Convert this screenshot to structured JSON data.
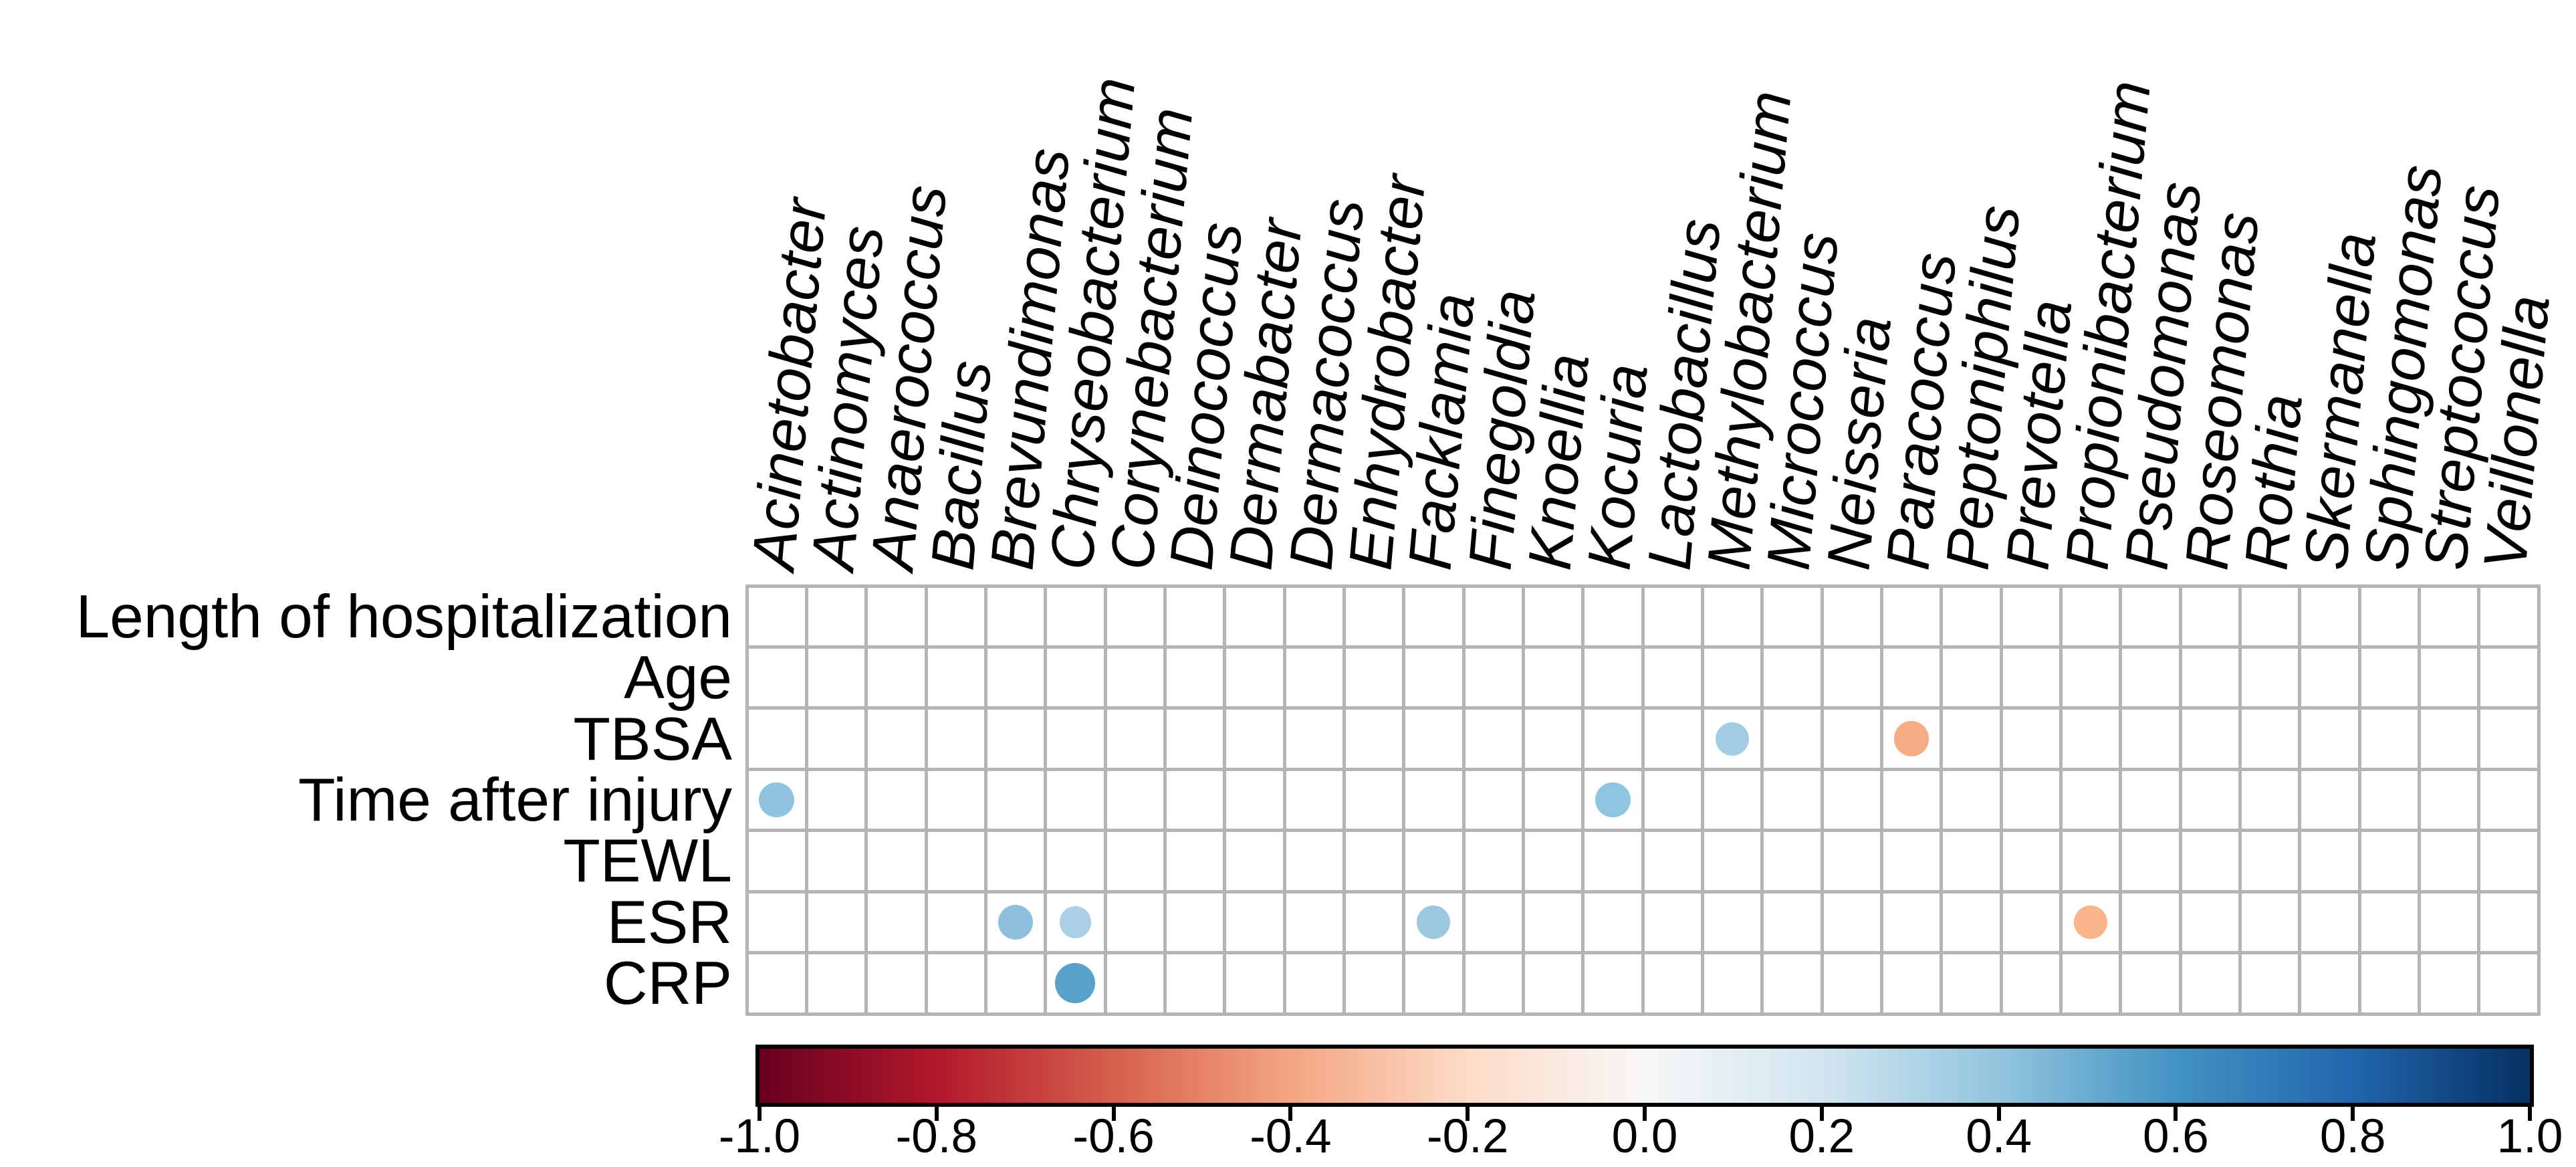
{
  "figure_title": "",
  "chart_data": {
    "type": "heatmap",
    "subtype": "correlation-dot-matrix",
    "title": "",
    "xlabel": "",
    "ylabel": "",
    "grid": true,
    "legend_position": "bottom",
    "rows": [
      "Length of hospitalization",
      "Age",
      "TBSA",
      "Time after injury",
      "TEWL",
      "ESR",
      "CRP"
    ],
    "columns": [
      "Acinetobacter",
      "Actinomyces",
      "Anaerococcus",
      "Bacillus",
      "Brevundimonas",
      "Chryseobacterium",
      "Corynebacterium",
      "Deinococcus",
      "Dermabacter",
      "Dermacoccus",
      "Enhydrobacter",
      "Facklamia",
      "Finegoldia",
      "Knoellia",
      "Kocuria",
      "Lactobacillus",
      "Methylobacterium",
      "Micrococcus",
      "Neisseria",
      "Paracoccus",
      "Peptoniphilus",
      "Prevotella",
      "Propionibacterium",
      "Pseudomonas",
      "Roseomonas",
      "Rothia",
      "Skermanella",
      "Sphingomonas",
      "Streptococcus",
      "Veillonella"
    ],
    "points": [
      {
        "row": "Time after injury",
        "column": "Acinetobacter",
        "value": 0.45,
        "color": "#8FC3E0"
      },
      {
        "row": "Time after injury",
        "column": "Kocuria",
        "value": 0.45,
        "color": "#8EC6E2"
      },
      {
        "row": "TBSA",
        "column": "Methylobacterium",
        "value": 0.4,
        "color": "#A3CDE4"
      },
      {
        "row": "TBSA",
        "column": "Paracoccus",
        "value": -0.45,
        "color": "#F5AC84"
      },
      {
        "row": "ESR",
        "column": "Brevundimonas",
        "value": 0.45,
        "color": "#8CC0DD"
      },
      {
        "row": "ESR",
        "column": "Chryseobacterium",
        "value": 0.35,
        "color": "#ABD0E6"
      },
      {
        "row": "ESR",
        "column": "Facklamia",
        "value": 0.4,
        "color": "#9BC8E0"
      },
      {
        "row": "ESR",
        "column": "Propionibacterium",
        "value": -0.4,
        "color": "#F7B589"
      },
      {
        "row": "CRP",
        "column": "Chryseobacterium",
        "value": 0.6,
        "color": "#58A1CA"
      }
    ],
    "empty_cell_color": "#ffffff",
    "grid_line_color": "#b4b4b4",
    "text_color": "#000000",
    "colorbar": {
      "min": -1.0,
      "max": 1.0,
      "tick_labels": [
        "-1.0",
        "-0.8",
        "-0.6",
        "-0.4",
        "-0.2",
        "0.0",
        "0.2",
        "0.4",
        "0.6",
        "0.8",
        "1.0"
      ],
      "gradient_stops": [
        "#67001F",
        "#B2182B",
        "#D6604D",
        "#F4A582",
        "#FDDBC7",
        "#F7F7F7",
        "#D1E5F0",
        "#92C5DE",
        "#4393C3",
        "#2166AC",
        "#053061"
      ],
      "border_color": "#000000",
      "tick_color": "#000000"
    }
  }
}
